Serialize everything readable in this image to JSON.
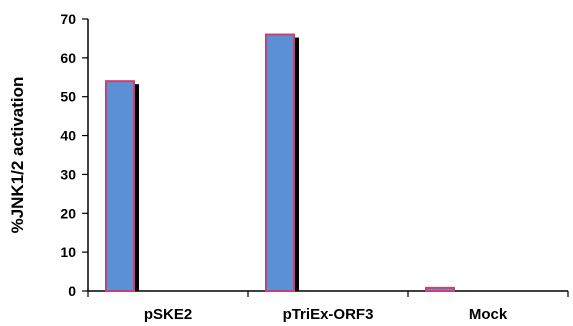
{
  "chart_data": {
    "type": "bar",
    "categories": [
      "pSKE2",
      "pTriEx-ORF3",
      "Mock"
    ],
    "values": [
      54,
      66,
      0.8
    ],
    "title": "",
    "xlabel": "",
    "ylabel": "%JNK1/2 activation",
    "ylim": [
      0,
      70
    ],
    "yticks": [
      0,
      10,
      20,
      30,
      40,
      50,
      60,
      70
    ],
    "grid": false,
    "legend": "none",
    "colors": {
      "bar_fill": "#5b8fd6",
      "bar_border": "#cc3f6e",
      "bar_shadow": "#000000",
      "axis": "#000000"
    }
  }
}
